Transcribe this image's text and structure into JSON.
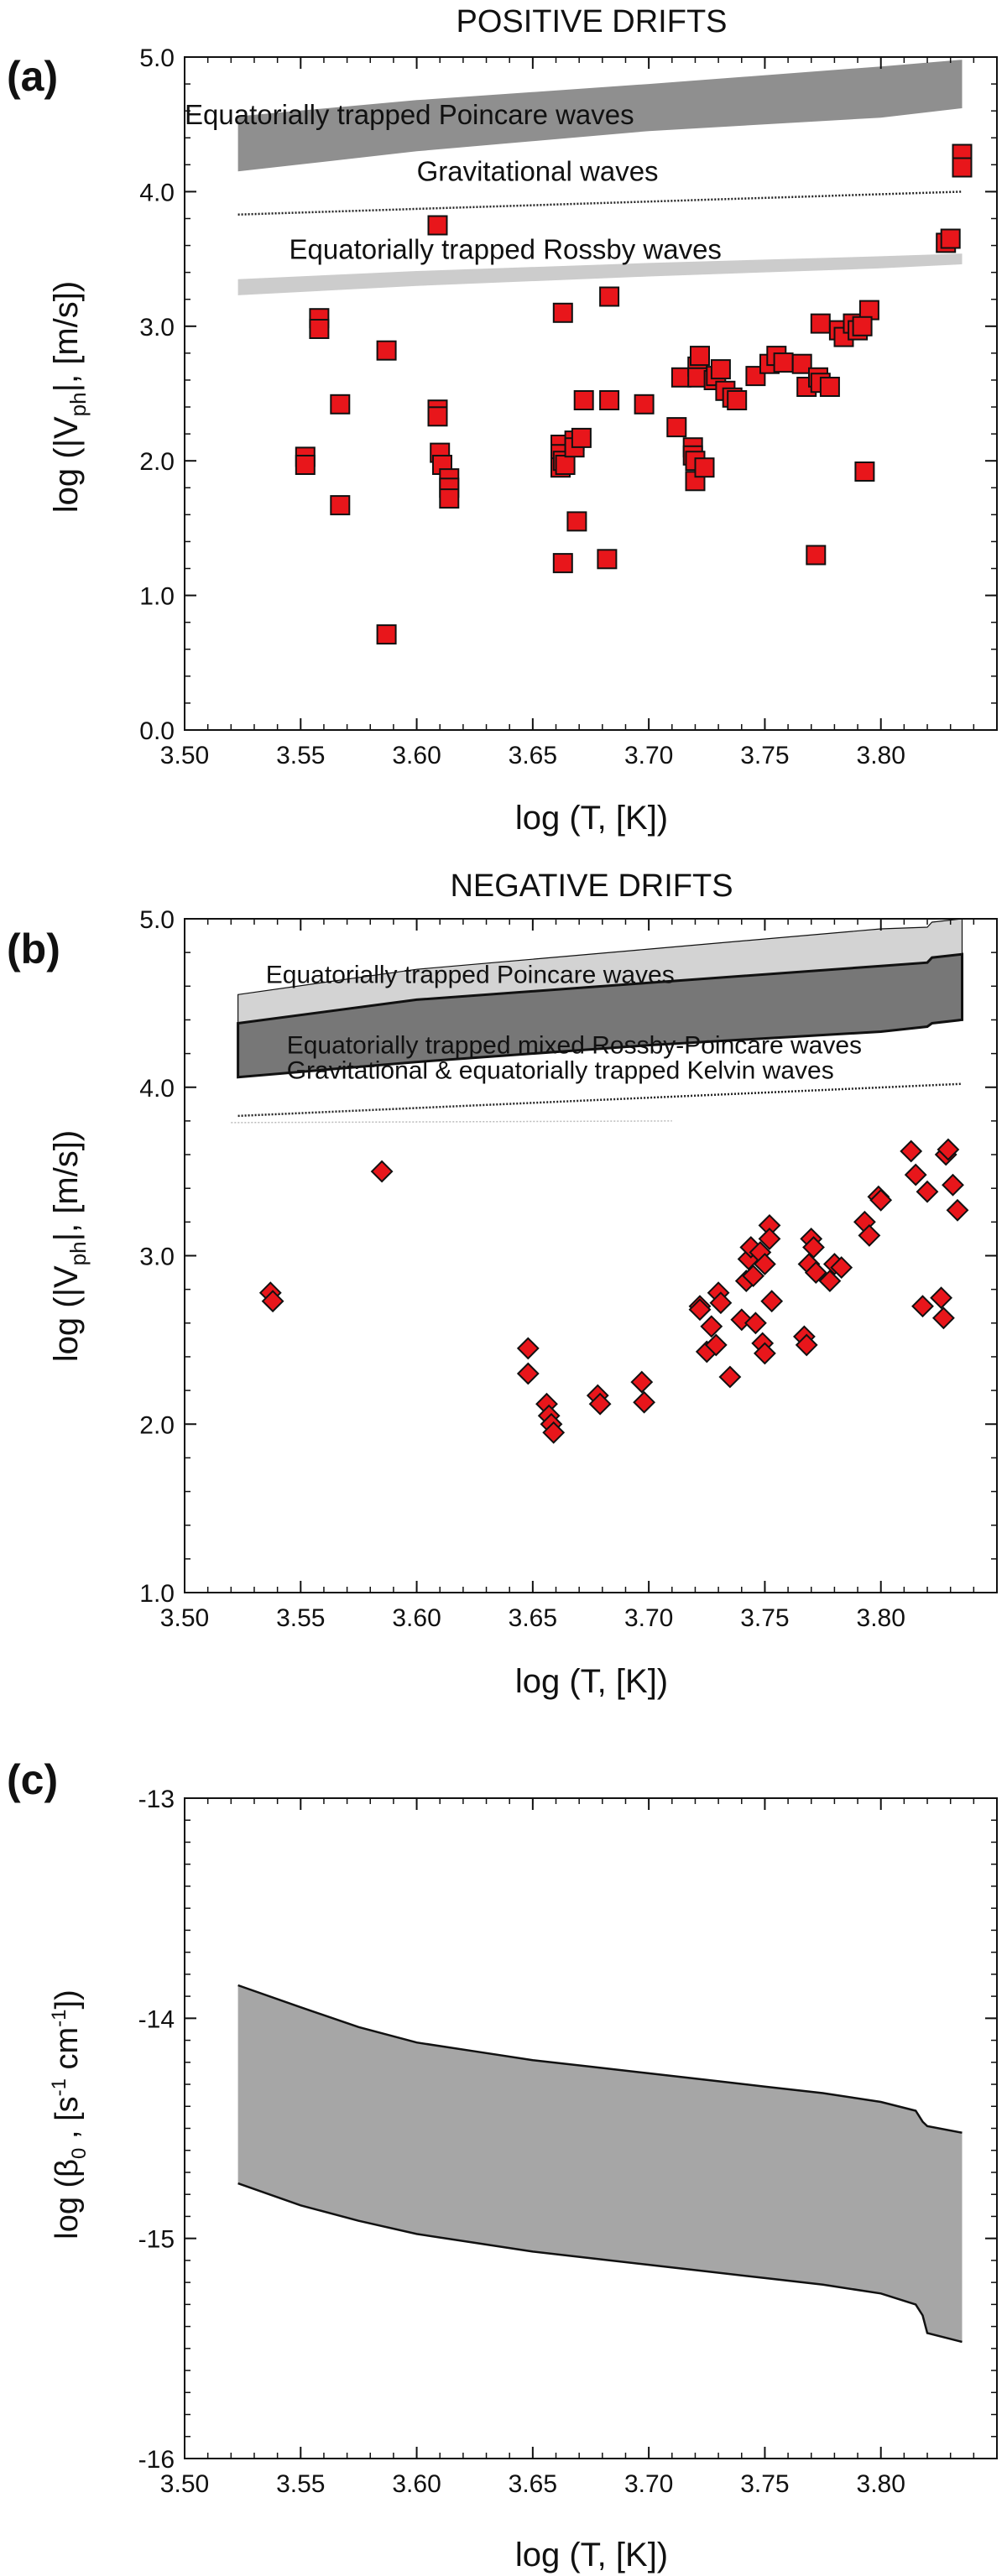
{
  "chart_data": [
    {
      "type": "scatter",
      "panel_label": "(a)",
      "title": "POSITIVE DRIFTS",
      "xlabel": "log (T, [K])",
      "ylabel": {
        "pre": "log (|V",
        "sub": "ph",
        "post": "|, [m/s])"
      },
      "xlim": [
        3.5,
        3.85
      ],
      "ylim": [
        0.0,
        5.0
      ],
      "xticks": [
        "3.50",
        "3.55",
        "3.60",
        "3.65",
        "3.70",
        "3.75",
        "3.80"
      ],
      "xtick_values": [
        3.5,
        3.55,
        3.6,
        3.65,
        3.7,
        3.75,
        3.8
      ],
      "yticks": [
        "0.0",
        "1.0",
        "2.0",
        "3.0",
        "4.0",
        "5.0"
      ],
      "ytick_values": [
        0,
        1,
        2,
        3,
        4,
        5
      ],
      "marker": "square",
      "bands": [
        {
          "name": "poincare",
          "color": "#8f8f8f",
          "x": [
            3.523,
            3.6,
            3.7,
            3.8,
            3.835
          ],
          "lower": [
            4.15,
            4.3,
            4.45,
            4.55,
            4.62
          ],
          "upper": [
            4.56,
            4.68,
            4.8,
            4.93,
            4.98
          ]
        },
        {
          "name": "rossby",
          "color": "#cccccc",
          "x": [
            3.523,
            3.6,
            3.7,
            3.8,
            3.835
          ],
          "lower": [
            3.23,
            3.3,
            3.37,
            3.43,
            3.46
          ],
          "upper": [
            3.35,
            3.41,
            3.47,
            3.52,
            3.54
          ]
        }
      ],
      "lines": [
        {
          "name": "gravitational",
          "style": "dotted",
          "x": [
            3.523,
            3.835
          ],
          "y": [
            3.83,
            4.0
          ]
        }
      ],
      "annotations": [
        {
          "text": "Equatorially trapped Poincare waves",
          "x": 3.5,
          "y": 4.5
        },
        {
          "text": "Gravitational waves",
          "x": 3.6,
          "y": 4.08
        },
        {
          "text": "Equatorially trapped Rossby waves",
          "x": 3.545,
          "y": 3.5
        }
      ],
      "points": {
        "x": [
          3.552,
          3.552,
          3.558,
          3.558,
          3.567,
          3.567,
          3.587,
          3.587,
          3.609,
          3.609,
          3.61,
          3.611,
          3.614,
          3.614,
          3.614,
          3.609,
          3.662,
          3.662,
          3.662,
          3.663,
          3.663,
          3.663,
          3.664,
          3.668,
          3.668,
          3.669,
          3.672,
          3.671,
          3.683,
          3.683,
          3.682,
          3.698,
          3.712,
          3.714,
          3.719,
          3.719,
          3.72,
          3.721,
          3.721,
          3.722,
          3.72,
          3.724,
          3.728,
          3.729,
          3.731,
          3.733,
          3.736,
          3.738,
          3.746,
          3.752,
          3.755,
          3.758,
          3.766,
          3.768,
          3.772,
          3.773,
          3.774,
          3.774,
          3.778,
          3.782,
          3.784,
          3.788,
          3.79,
          3.793,
          3.795,
          3.792,
          3.828,
          3.83,
          3.835,
          3.835
        ],
        "y": [
          2.03,
          1.97,
          3.06,
          2.98,
          2.42,
          1.67,
          2.82,
          0.71,
          2.38,
          2.33,
          2.06,
          1.97,
          1.87,
          1.8,
          1.72,
          3.75,
          2.12,
          2.05,
          1.95,
          3.1,
          2.0,
          1.24,
          1.97,
          2.15,
          2.1,
          1.55,
          2.45,
          2.17,
          3.22,
          2.45,
          1.27,
          2.42,
          2.25,
          2.62,
          2.1,
          2.04,
          1.85,
          2.7,
          2.62,
          2.78,
          2.0,
          1.95,
          2.6,
          2.63,
          2.68,
          2.52,
          2.47,
          2.45,
          2.63,
          2.72,
          2.78,
          2.73,
          2.72,
          2.55,
          1.3,
          2.62,
          2.58,
          3.02,
          2.55,
          2.97,
          2.92,
          3.02,
          2.97,
          1.92,
          3.12,
          3.0,
          3.62,
          3.65,
          4.28,
          4.18
        ]
      }
    },
    {
      "type": "scatter",
      "panel_label": "(b)",
      "title": "NEGATIVE DRIFTS",
      "xlabel": "log (T, [K])",
      "ylabel": {
        "pre": "log (|V",
        "sub": "ph",
        "post": "|, [m/s])"
      },
      "xlim": [
        3.5,
        3.85
      ],
      "ylim": [
        1.0,
        5.0
      ],
      "xticks": [
        "3.50",
        "3.55",
        "3.60",
        "3.65",
        "3.70",
        "3.75",
        "3.80"
      ],
      "xtick_values": [
        3.5,
        3.55,
        3.6,
        3.65,
        3.7,
        3.75,
        3.8
      ],
      "yticks": [
        "1.0",
        "2.0",
        "3.0",
        "4.0",
        "5.0"
      ],
      "ytick_values": [
        1,
        2,
        3,
        4,
        5
      ],
      "marker": "diamond",
      "bands": [
        {
          "name": "poincare-outer",
          "color": "#d3d3d3",
          "x": [
            3.523,
            3.6,
            3.7,
            3.8,
            3.82,
            3.822,
            3.835
          ],
          "lower": [
            4.06,
            4.2,
            4.32,
            4.42,
            4.45,
            4.5,
            4.52
          ],
          "upper": [
            4.55,
            4.7,
            4.82,
            4.94,
            4.95,
            4.98,
            5.0
          ]
        },
        {
          "name": "mixed-rossby-poincare",
          "color": "#777777",
          "x": [
            3.523,
            3.6,
            3.7,
            3.8,
            3.82,
            3.822,
            3.835
          ],
          "lower": [
            4.06,
            4.15,
            4.25,
            4.33,
            4.36,
            4.38,
            4.4
          ],
          "upper": [
            4.38,
            4.52,
            4.62,
            4.72,
            4.74,
            4.77,
            4.79
          ]
        }
      ],
      "lines": [
        {
          "name": "gravitational-kelvin",
          "style": "dotted",
          "x": [
            3.523,
            3.835
          ],
          "y": [
            3.83,
            4.02
          ]
        },
        {
          "name": "faint-clipped",
          "style": "dotted",
          "x": [
            3.52,
            3.71
          ],
          "y": [
            3.79,
            3.8
          ]
        }
      ],
      "annotations": [
        {
          "text": "Equatorially trapped Poincare waves",
          "x": 3.535,
          "y": 4.62
        },
        {
          "text": "Equatorially trapped mixed Rossby-Poincare waves",
          "x": 3.544,
          "y": 4.2
        },
        {
          "text": "Gravitational & equatorially trapped Kelvin waves",
          "x": 3.544,
          "y": 4.05
        }
      ],
      "points": {
        "x": [
          3.537,
          3.538,
          3.585,
          3.648,
          3.648,
          3.656,
          3.657,
          3.658,
          3.659,
          3.678,
          3.679,
          3.697,
          3.698,
          3.722,
          3.722,
          3.725,
          3.727,
          3.729,
          3.73,
          3.731,
          3.735,
          3.74,
          3.742,
          3.743,
          3.744,
          3.745,
          3.746,
          3.748,
          3.749,
          3.75,
          3.75,
          3.752,
          3.752,
          3.753,
          3.767,
          3.768,
          3.769,
          3.77,
          3.771,
          3.772,
          3.778,
          3.78,
          3.783,
          3.793,
          3.795,
          3.799,
          3.8,
          3.813,
          3.815,
          3.818,
          3.82,
          3.826,
          3.827,
          3.828,
          3.829,
          3.831,
          3.833
        ],
        "y": [
          2.78,
          2.73,
          3.5,
          2.45,
          2.3,
          2.12,
          2.05,
          2.0,
          1.95,
          2.17,
          2.12,
          2.25,
          2.13,
          2.7,
          2.68,
          2.43,
          2.58,
          2.47,
          2.78,
          2.72,
          2.28,
          2.62,
          2.85,
          2.98,
          3.05,
          2.88,
          2.6,
          3.02,
          2.48,
          2.42,
          2.95,
          3.18,
          3.1,
          2.73,
          2.52,
          2.47,
          2.95,
          3.1,
          3.05,
          2.9,
          2.85,
          2.95,
          2.93,
          3.2,
          3.12,
          3.35,
          3.33,
          3.62,
          3.48,
          2.7,
          3.38,
          2.75,
          2.63,
          3.6,
          3.63,
          3.42,
          3.27
        ]
      }
    },
    {
      "type": "area",
      "panel_label": "(c)",
      "xlabel": "log (T, [K])",
      "ylabel": {
        "pre": "log (β",
        "sub": "0",
        "post": " , [s",
        "sup1": "-1",
        "mid": " cm",
        "sup2": "-1",
        "end": "])"
      },
      "xlim": [
        3.5,
        3.85
      ],
      "ylim": [
        -16,
        -13
      ],
      "xticks": [
        "3.50",
        "3.55",
        "3.60",
        "3.65",
        "3.70",
        "3.75",
        "3.80"
      ],
      "xtick_values": [
        3.5,
        3.55,
        3.6,
        3.65,
        3.7,
        3.75,
        3.8
      ],
      "yticks": [
        "-16",
        "-15",
        "-14",
        "-13"
      ],
      "ytick_values": [
        -16,
        -15,
        -14,
        -13
      ],
      "band": {
        "color": "#a6a6a6",
        "x": [
          3.523,
          3.55,
          3.575,
          3.6,
          3.625,
          3.65,
          3.675,
          3.7,
          3.725,
          3.75,
          3.775,
          3.8,
          3.815,
          3.818,
          3.82,
          3.835
        ],
        "upper": [
          -13.85,
          -13.95,
          -14.04,
          -14.11,
          -14.15,
          -14.19,
          -14.22,
          -14.25,
          -14.28,
          -14.31,
          -14.34,
          -14.38,
          -14.42,
          -14.47,
          -14.49,
          -14.52
        ],
        "lower": [
          -14.75,
          -14.85,
          -14.92,
          -14.98,
          -15.02,
          -15.06,
          -15.09,
          -15.12,
          -15.15,
          -15.18,
          -15.21,
          -15.25,
          -15.3,
          -15.35,
          -15.43,
          -15.47
        ]
      }
    }
  ]
}
